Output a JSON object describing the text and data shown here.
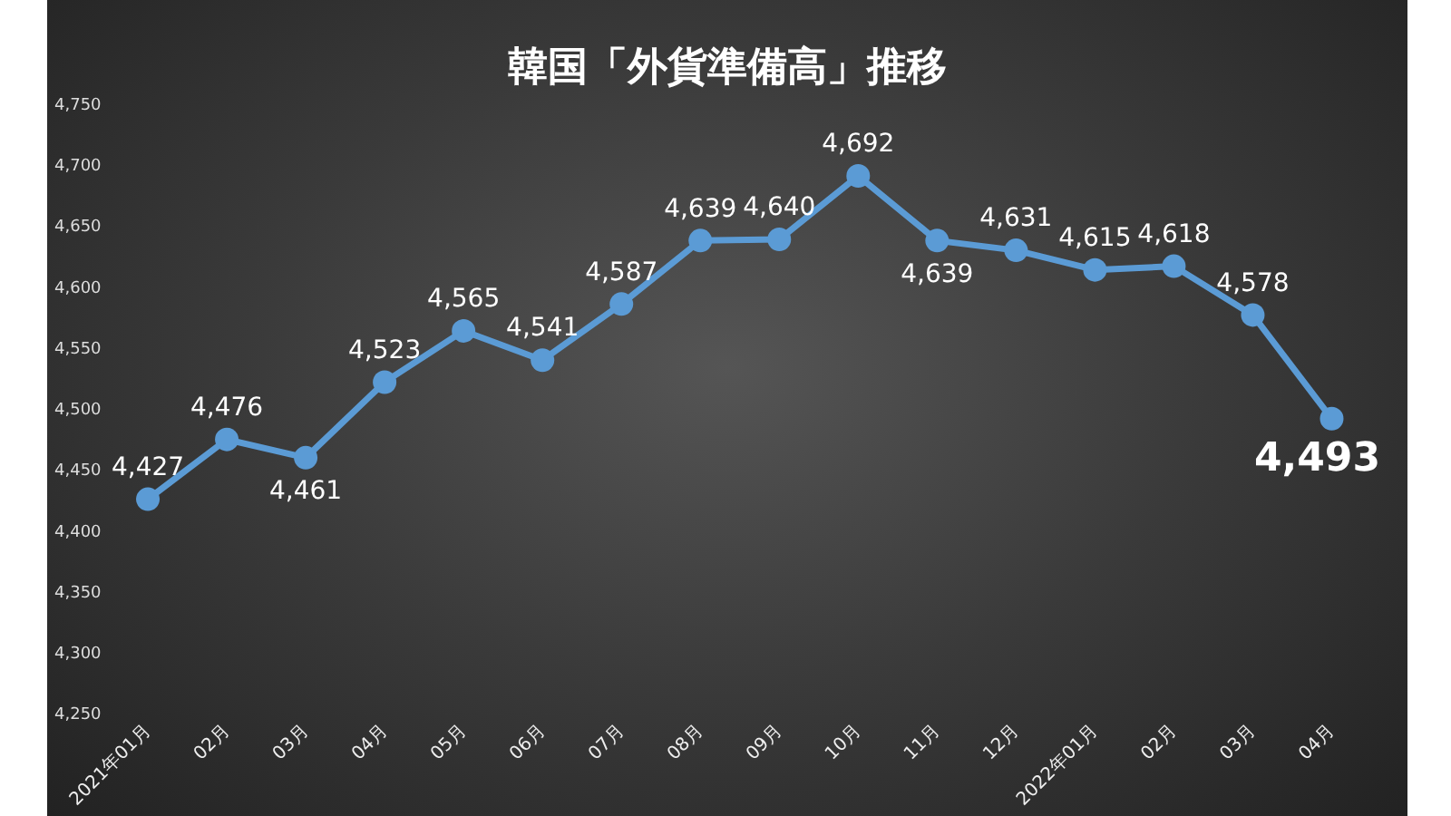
{
  "chart_data": {
    "type": "line",
    "title": "韓国「外貨準備高」推移",
    "categories": [
      "2021年01月",
      "02月",
      "03月",
      "04月",
      "05月",
      "06月",
      "07月",
      "08月",
      "09月",
      "10月",
      "11月",
      "12月",
      "2022年01月",
      "02月",
      "03月",
      "04月"
    ],
    "series": [
      {
        "color": "#5b9bd5",
        "values": [
          4427,
          4476,
          4461,
          4523,
          4565,
          4541,
          4587,
          4639,
          4640,
          4692,
          4639,
          4631,
          4615,
          4618,
          4578,
          4493
        ],
        "value_labels": [
          "4,427",
          "4,476",
          "4,461",
          "4,523",
          "4,565",
          "4,541",
          "4,587",
          "4,639",
          "4,640",
          "4,692",
          "4,639",
          "4,631",
          "4,615",
          "4,618",
          "4,578",
          "4,493"
        ]
      }
    ],
    "ylim": [
      4250,
      4750
    ],
    "yticks": [
      {
        "value": 4250,
        "label": "4,250"
      },
      {
        "value": 4300,
        "label": "4,300"
      },
      {
        "value": 4350,
        "label": "4,350"
      },
      {
        "value": 4400,
        "label": "4,400"
      },
      {
        "value": 4450,
        "label": "4,450"
      },
      {
        "value": 4500,
        "label": "4,500"
      },
      {
        "value": 4550,
        "label": "4,550"
      },
      {
        "value": 4600,
        "label": "4,600"
      },
      {
        "value": 4650,
        "label": "4,650"
      },
      {
        "value": 4700,
        "label": "4,700"
      },
      {
        "value": 4750,
        "label": "4,750"
      }
    ],
    "grid": false,
    "legend": false,
    "marker": "circle",
    "line_style": "solid"
  }
}
